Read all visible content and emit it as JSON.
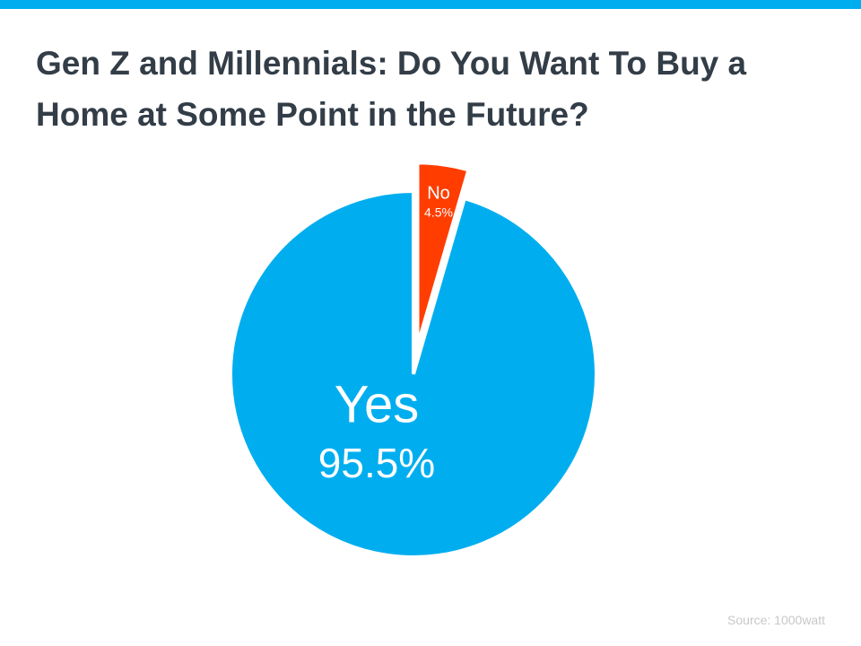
{
  "chart_data": {
    "type": "pie",
    "title": "Gen Z and Millennials: Do You Want To Buy a Home at Some Point in the Future?",
    "categories": [
      "Yes",
      "No"
    ],
    "values": [
      95.5,
      4.5
    ],
    "value_labels": [
      "95.5%",
      "4.5%"
    ],
    "colors": [
      "#00aeef",
      "#ff3d00"
    ],
    "source": "Source: 1000watt"
  }
}
